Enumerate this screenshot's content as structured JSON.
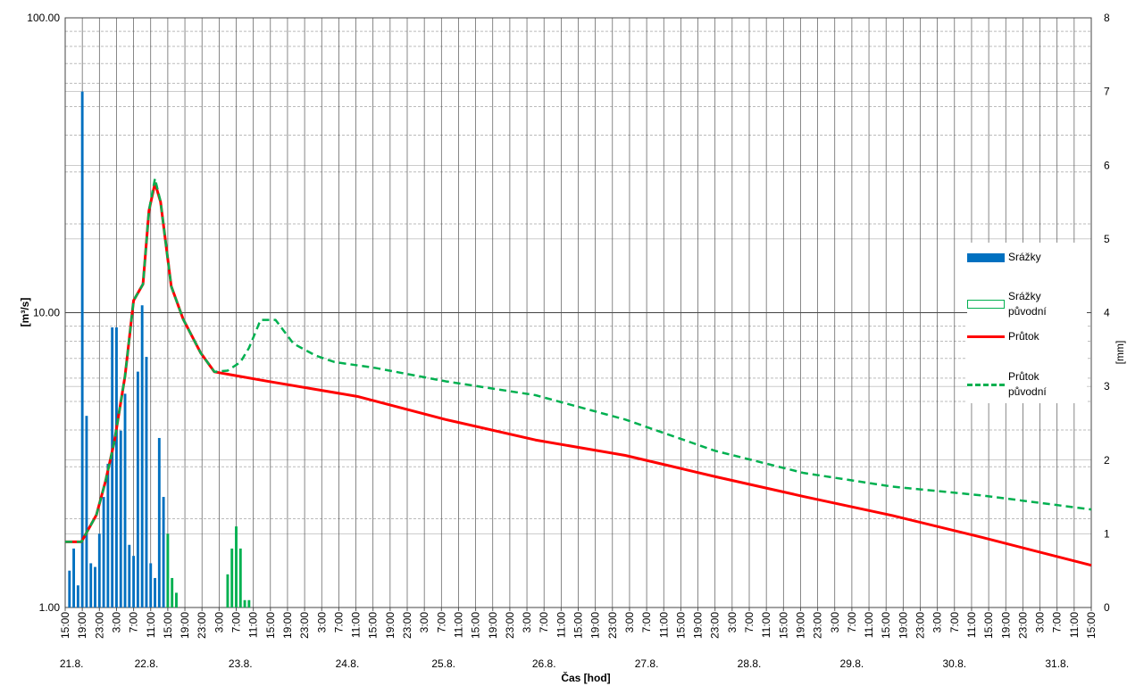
{
  "chart_data": {
    "type": "combo",
    "xlabel": "Čas [hod]",
    "ylabel": "[m³/s]",
    "y2label": "[mm]",
    "xlim": [
      0,
      240
    ],
    "xticks": [
      {
        "value": 0,
        "label": "15:00"
      },
      {
        "value": 4,
        "label": "19:00"
      },
      {
        "value": 8,
        "label": "23:00"
      },
      {
        "value": 12,
        "label": "3:00"
      },
      {
        "value": 16,
        "label": "7:00"
      },
      {
        "value": 20,
        "label": "11:00"
      },
      {
        "value": 24,
        "label": "15:00"
      },
      {
        "value": 28,
        "label": "19:00"
      },
      {
        "value": 32,
        "label": "23:00"
      },
      {
        "value": 36,
        "label": "3:00"
      },
      {
        "value": 40,
        "label": "7:00"
      },
      {
        "value": 44,
        "label": "11:00"
      },
      {
        "value": 48,
        "label": "15:00"
      },
      {
        "value": 52,
        "label": "19:00"
      },
      {
        "value": 56,
        "label": "23:00"
      },
      {
        "value": 60,
        "label": "3:00"
      },
      {
        "value": 64,
        "label": "7:00"
      },
      {
        "value": 68,
        "label": "11:00"
      },
      {
        "value": 72,
        "label": "15:00"
      },
      {
        "value": 76,
        "label": "19:00"
      },
      {
        "value": 80,
        "label": "23:00"
      },
      {
        "value": 84,
        "label": "3:00"
      },
      {
        "value": 88,
        "label": "7:00"
      },
      {
        "value": 92,
        "label": "11:00"
      },
      {
        "value": 96,
        "label": "15:00"
      },
      {
        "value": 100,
        "label": "19:00"
      },
      {
        "value": 104,
        "label": "23:00"
      },
      {
        "value": 108,
        "label": "3:00"
      },
      {
        "value": 112,
        "label": "7:00"
      },
      {
        "value": 116,
        "label": "11:00"
      },
      {
        "value": 120,
        "label": "15:00"
      },
      {
        "value": 124,
        "label": "19:00"
      },
      {
        "value": 128,
        "label": "23:00"
      },
      {
        "value": 132,
        "label": "3:00"
      },
      {
        "value": 136,
        "label": "7:00"
      },
      {
        "value": 140,
        "label": "11:00"
      },
      {
        "value": 144,
        "label": "15:00"
      },
      {
        "value": 148,
        "label": "19:00"
      },
      {
        "value": 152,
        "label": "23:00"
      },
      {
        "value": 156,
        "label": "3:00"
      },
      {
        "value": 160,
        "label": "7:00"
      },
      {
        "value": 164,
        "label": "11:00"
      },
      {
        "value": 168,
        "label": "15:00"
      },
      {
        "value": 172,
        "label": "19:00"
      },
      {
        "value": 176,
        "label": "23:00"
      },
      {
        "value": 180,
        "label": "3:00"
      },
      {
        "value": 184,
        "label": "7:00"
      },
      {
        "value": 188,
        "label": "11:00"
      },
      {
        "value": 192,
        "label": "15:00"
      },
      {
        "value": 196,
        "label": "19:00"
      },
      {
        "value": 200,
        "label": "23:00"
      },
      {
        "value": 204,
        "label": "3:00"
      },
      {
        "value": 208,
        "label": "7:00"
      },
      {
        "value": 212,
        "label": "11:00"
      },
      {
        "value": 216,
        "label": "15:00"
      },
      {
        "value": 220,
        "label": "19:00"
      },
      {
        "value": 224,
        "label": "23:00"
      },
      {
        "value": 228,
        "label": "3:00"
      },
      {
        "value": 232,
        "label": "7:00"
      },
      {
        "value": 236,
        "label": "11:00"
      },
      {
        "value": 240,
        "label": "15:00"
      }
    ],
    "xdate_ticks": [
      {
        "value": 1.5,
        "label": "21.8."
      },
      {
        "value": 19,
        "label": "22.8."
      },
      {
        "value": 41,
        "label": "23.8."
      },
      {
        "value": 66,
        "label": "24.8."
      },
      {
        "value": 88.5,
        "label": "25.8."
      },
      {
        "value": 112,
        "label": "26.8."
      },
      {
        "value": 136,
        "label": "27.8."
      },
      {
        "value": 160,
        "label": "28.8."
      },
      {
        "value": 184,
        "label": "29.8."
      },
      {
        "value": 208,
        "label": "30.8."
      },
      {
        "value": 232,
        "label": "31.8."
      }
    ],
    "ylog": true,
    "ylim": [
      1,
      100
    ],
    "yticks": [
      {
        "value": 1,
        "label": "1.00"
      },
      {
        "value": 10,
        "label": "10.00"
      },
      {
        "value": 100,
        "label": "100.00"
      }
    ],
    "yminor_ticks": [
      2,
      3,
      4,
      5,
      6,
      7,
      8,
      9,
      20,
      30,
      40,
      50,
      60,
      70,
      80,
      90
    ],
    "y2lim": [
      0,
      8
    ],
    "y2ticks": [
      0,
      1,
      2,
      3,
      4,
      5,
      6,
      7,
      8
    ],
    "grid": true,
    "legend": "right",
    "series": [
      {
        "name": "Srážky",
        "type": "bar",
        "axis": "y2",
        "color": "#0070c0",
        "x": [
          1,
          2,
          3,
          4,
          5,
          6,
          7,
          8,
          9,
          10,
          11,
          12,
          13,
          14,
          15,
          16,
          17,
          18,
          19,
          20,
          21,
          22,
          23
        ],
        "values": [
          0.5,
          0.8,
          0.3,
          7.0,
          2.6,
          0.6,
          0.55,
          1.0,
          1.5,
          1.95,
          3.8,
          3.8,
          2.4,
          2.9,
          0.85,
          0.7,
          3.2,
          4.1,
          3.4,
          0.6,
          0.4,
          2.3,
          1.5
        ]
      },
      {
        "name": "Srážky původní",
        "type": "bar",
        "axis": "y2",
        "color": "#00b050",
        "x": [
          24,
          25,
          26,
          38,
          39,
          40,
          41,
          42,
          43
        ],
        "values": [
          1.0,
          0.4,
          0.2,
          0.45,
          0.8,
          1.1,
          0.8,
          0.1,
          0.1
        ]
      },
      {
        "name": "Průtok",
        "type": "line",
        "axis": "y",
        "color": "#ff0000",
        "x": [
          0,
          3.8,
          7.3,
          9.4,
          11.5,
          14,
          16,
          18.2,
          19.6,
          21,
          22.3,
          24.8,
          27.6,
          31.7,
          34.9,
          47.4,
          68.3,
          89,
          110,
          131,
          152,
          172.7,
          193.5,
          214.4,
          240
        ],
        "values": [
          1.67,
          1.67,
          2.06,
          2.67,
          3.65,
          6.1,
          11.0,
          12.5,
          22.2,
          27.5,
          23.8,
          12.3,
          9.5,
          7.3,
          6.3,
          5.85,
          5.2,
          4.34,
          3.7,
          3.28,
          2.78,
          2.38,
          2.05,
          1.73,
          1.39
        ]
      },
      {
        "name": "Průtok původní",
        "type": "line",
        "dashed": true,
        "axis": "y",
        "color": "#00b050",
        "x": [
          0,
          3.8,
          7.3,
          9.4,
          11.5,
          14,
          16,
          18.2,
          19.6,
          21,
          22.3,
          24.8,
          27.6,
          31.7,
          34.9,
          38,
          41,
          43,
          45.7,
          49.2,
          53.4,
          58.6,
          63,
          72.4,
          89,
          110,
          131,
          152,
          172.7,
          193.5,
          214.4,
          240
        ],
        "values": [
          1.67,
          1.67,
          2.06,
          2.67,
          3.65,
          6.1,
          11.0,
          12.5,
          22.2,
          28.5,
          23.8,
          12.3,
          9.5,
          7.3,
          6.3,
          6.36,
          6.8,
          7.6,
          9.45,
          9.45,
          7.85,
          7.15,
          6.8,
          6.5,
          5.85,
          5.25,
          4.34,
          3.4,
          2.86,
          2.57,
          2.4,
          2.15
        ]
      }
    ]
  }
}
